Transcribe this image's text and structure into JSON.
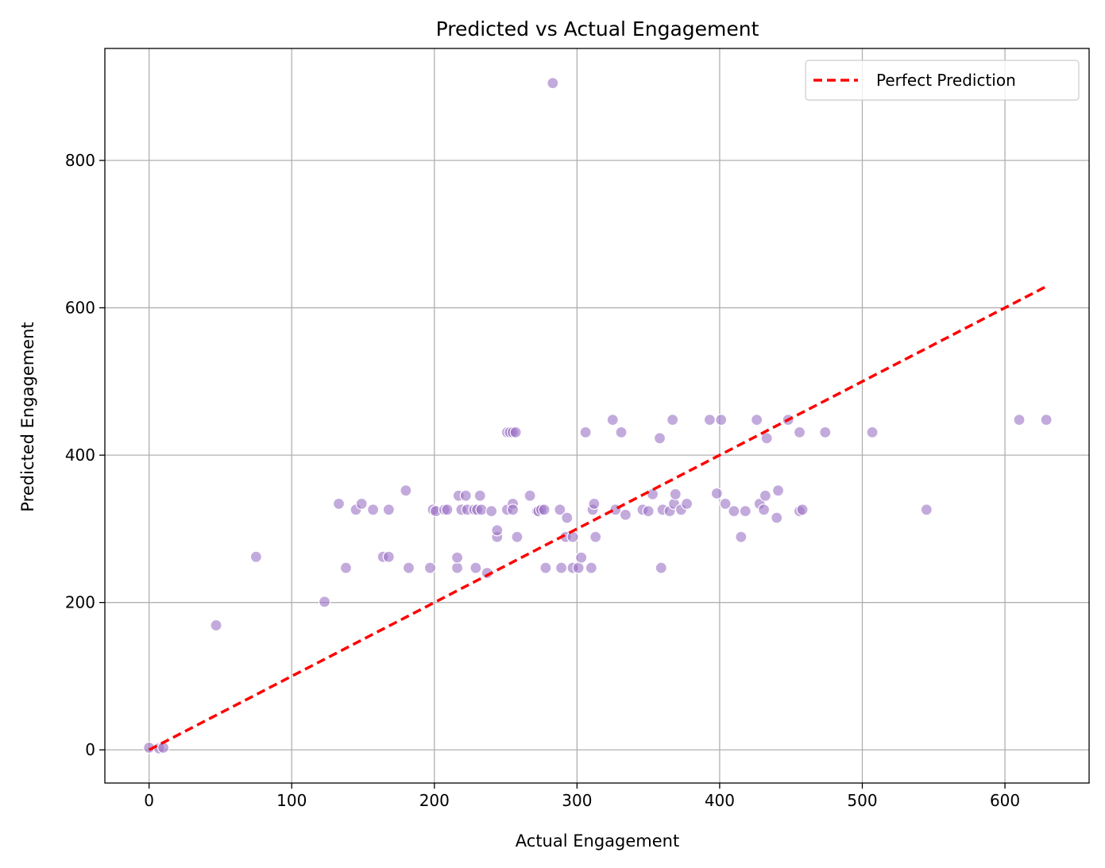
{
  "chart_data": {
    "type": "scatter",
    "title": "Predicted vs Actual Engagement",
    "xlabel": "Actual Engagement",
    "ylabel": "Predicted Engagement",
    "xlim": [
      -31,
      659
    ],
    "ylim": [
      -45,
      952
    ],
    "xticks": [
      0,
      100,
      200,
      300,
      400,
      500,
      600
    ],
    "yticks": [
      0,
      200,
      400,
      600,
      800
    ],
    "grid": true,
    "legend_position": "top-right",
    "point_color": "#9b72c4",
    "line_color": "#ff0000",
    "series": [
      {
        "type": "scatter",
        "points": [
          [
            0,
            3
          ],
          [
            7,
            2
          ],
          [
            10,
            3
          ],
          [
            47,
            169
          ],
          [
            75,
            262
          ],
          [
            123,
            201
          ],
          [
            133,
            334
          ],
          [
            138,
            247
          ],
          [
            145,
            326
          ],
          [
            149,
            334
          ],
          [
            157,
            326
          ],
          [
            164,
            262
          ],
          [
            168,
            262
          ],
          [
            168,
            326
          ],
          [
            180,
            352
          ],
          [
            182,
            247
          ],
          [
            197,
            247
          ],
          [
            199,
            326
          ],
          [
            201,
            324
          ],
          [
            207,
            326
          ],
          [
            209,
            326
          ],
          [
            216,
            247
          ],
          [
            216,
            261
          ],
          [
            217,
            345
          ],
          [
            219,
            326
          ],
          [
            222,
            345
          ],
          [
            223,
            326
          ],
          [
            228,
            326
          ],
          [
            229,
            247
          ],
          [
            230,
            326
          ],
          [
            232,
            345
          ],
          [
            233,
            326
          ],
          [
            237,
            240
          ],
          [
            240,
            324
          ],
          [
            244,
            289
          ],
          [
            244,
            298
          ],
          [
            251,
            431
          ],
          [
            251,
            326
          ],
          [
            253,
            431
          ],
          [
            255,
            431
          ],
          [
            255,
            334
          ],
          [
            255,
            326
          ],
          [
            257,
            431
          ],
          [
            258,
            289
          ],
          [
            267,
            345
          ],
          [
            272,
            324
          ],
          [
            273,
            324
          ],
          [
            275,
            326
          ],
          [
            277,
            326
          ],
          [
            278,
            247
          ],
          [
            283,
            905
          ],
          [
            288,
            326
          ],
          [
            289,
            247
          ],
          [
            292,
            289
          ],
          [
            293,
            315
          ],
          [
            297,
            247
          ],
          [
            297,
            289
          ],
          [
            301,
            247
          ],
          [
            303,
            261
          ],
          [
            306,
            431
          ],
          [
            310,
            247
          ],
          [
            311,
            326
          ],
          [
            312,
            334
          ],
          [
            313,
            289
          ],
          [
            325,
            448
          ],
          [
            327,
            326
          ],
          [
            331,
            431
          ],
          [
            334,
            319
          ],
          [
            346,
            326
          ],
          [
            350,
            324
          ],
          [
            353,
            347
          ],
          [
            358,
            423
          ],
          [
            359,
            247
          ],
          [
            360,
            326
          ],
          [
            365,
            324
          ],
          [
            367,
            448
          ],
          [
            368,
            334
          ],
          [
            369,
            347
          ],
          [
            373,
            326
          ],
          [
            377,
            334
          ],
          [
            393,
            448
          ],
          [
            398,
            348
          ],
          [
            401,
            448
          ],
          [
            404,
            334
          ],
          [
            410,
            324
          ],
          [
            415,
            289
          ],
          [
            418,
            324
          ],
          [
            426,
            448
          ],
          [
            428,
            334
          ],
          [
            431,
            326
          ],
          [
            432,
            345
          ],
          [
            433,
            423
          ],
          [
            440,
            315
          ],
          [
            441,
            352
          ],
          [
            448,
            448
          ],
          [
            456,
            324
          ],
          [
            456,
            431
          ],
          [
            458,
            326
          ],
          [
            474,
            431
          ],
          [
            507,
            431
          ],
          [
            545,
            326
          ],
          [
            610,
            448
          ],
          [
            629,
            448
          ]
        ]
      },
      {
        "type": "line",
        "name": "Perfect Prediction",
        "x": [
          0,
          629
        ],
        "y": [
          0,
          629
        ]
      }
    ]
  }
}
